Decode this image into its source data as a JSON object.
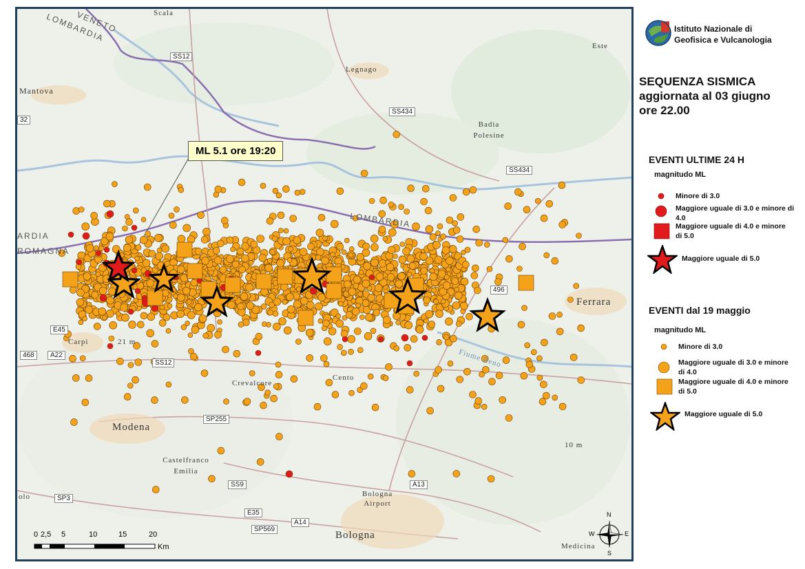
{
  "map": {
    "callout": "ML 5.1 ore 19:20",
    "places": {
      "mantova": "Mantova",
      "legnago": "Legnago",
      "scala": "Scala",
      "badia_polesine": "Badia Polesine",
      "este": "Este",
      "ferrara": "Ferrara",
      "carpi": "Carpi",
      "modena": "Modena",
      "castelfranco": "Castelfranco Emilia",
      "cento": "Cento",
      "crevalcore": "Crevalcore",
      "bologna": "Bologna",
      "bologna_airport": "Bologna Airport",
      "medicina": "Medicina",
      "olo": "olo",
      "fiume_reno": "Fiume Reno"
    },
    "regions": {
      "veneto": "VENETO",
      "lombardia_top": "LOMBARDIA",
      "lombardia_mid": "LOMBARDIA",
      "ardia": "ARDIA",
      "romagna": "ROMAGNA"
    },
    "elevations": {
      "e1": "21 m",
      "e2": "10 m"
    },
    "roads": [
      "SS12",
      "SS434",
      "SS434",
      "32",
      "E45",
      "468",
      "A22",
      "SS12",
      "SP255",
      "SS9",
      "SP3",
      "A13",
      "E35",
      "A14",
      "SP569",
      "496"
    ],
    "scale": {
      "ticks": [
        "0",
        "2,5",
        "5",
        "10",
        "15",
        "20"
      ],
      "unit": "Km"
    },
    "compass": {
      "n": "N",
      "s": "S",
      "e": "E",
      "w": "W"
    }
  },
  "panel": {
    "institute": {
      "line1": "Istituto Nazionale di",
      "line2": "Geofisica e Vulcanologia"
    },
    "sequence": {
      "line1": "SEQUENZA SISMICA",
      "line2": "aggiornata al 03 giugno",
      "line3": "ore 22.00"
    },
    "legend_24h": {
      "title": "EVENTI ULTIME 24 H",
      "subtitle": "magnitudo ML",
      "items": [
        "Minore di 3.0",
        "Maggiore uguale di 3.0 e minore di 4.0",
        "Maggiore uguale di 4.0 e minore di 5.0",
        "Maggiore uguale di 5.0"
      ]
    },
    "legend_since": {
      "title": "EVENTI dal 19 maggio",
      "subtitle": "magnitudo ML",
      "items": [
        "Minore di 3.0",
        "Maggiore uguale di 3.0 e minore di 4.0",
        "Maggiore uguale di 4.0 e minore di 5.0",
        "Maggiore uguale di 5.0"
      ]
    }
  },
  "colors": {
    "orange": "#f5a21b",
    "red": "#e11b1b",
    "border": "#1f3f5a"
  }
}
